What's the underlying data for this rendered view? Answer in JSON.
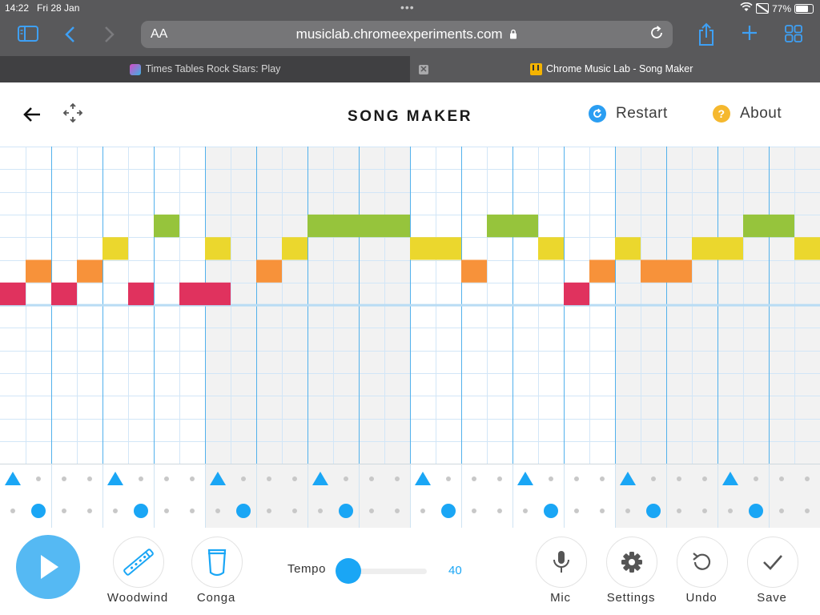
{
  "status": {
    "time": "14:22",
    "date": "Fri 28 Jan",
    "battery": "77%"
  },
  "browser": {
    "url": "musiclab.chromeexperiments.com",
    "text_size_label": "AA",
    "tabs": [
      {
        "title": "Times Tables Rock Stars: Play",
        "active": false
      },
      {
        "title": "Chrome Music Lab - Song Maker",
        "active": true
      }
    ]
  },
  "app": {
    "title": "SONG MAKER",
    "restart_label": "Restart",
    "about_label": "About",
    "about_icon_text": "?"
  },
  "melody": {
    "columns": 32,
    "rows": 14,
    "notes": [
      {
        "col": 0,
        "row": 6,
        "color": "#e0325e"
      },
      {
        "col": 1,
        "row": 5,
        "color": "#f7923a"
      },
      {
        "col": 2,
        "row": 6,
        "color": "#e0325e"
      },
      {
        "col": 3,
        "row": 5,
        "color": "#f7923a"
      },
      {
        "col": 4,
        "row": 4,
        "color": "#ebd72d"
      },
      {
        "col": 5,
        "row": 6,
        "color": "#e0325e"
      },
      {
        "col": 6,
        "row": 3,
        "color": "#96c43c"
      },
      {
        "col": 7,
        "row": 6,
        "color": "#e0325e"
      },
      {
        "col": 8,
        "row": 6,
        "color": "#e0325e"
      },
      {
        "col": 8,
        "row": 4,
        "color": "#ebd72d"
      },
      {
        "col": 10,
        "row": 5,
        "color": "#f7923a"
      },
      {
        "col": 11,
        "row": 4,
        "color": "#ebd72d"
      },
      {
        "col": 12,
        "row": 3,
        "color": "#96c43c"
      },
      {
        "col": 13,
        "row": 3,
        "color": "#96c43c"
      },
      {
        "col": 14,
        "row": 3,
        "color": "#96c43c"
      },
      {
        "col": 15,
        "row": 3,
        "color": "#96c43c"
      },
      {
        "col": 16,
        "row": 4,
        "color": "#ebd72d"
      },
      {
        "col": 17,
        "row": 4,
        "color": "#ebd72d"
      },
      {
        "col": 18,
        "row": 5,
        "color": "#f7923a"
      },
      {
        "col": 19,
        "row": 3,
        "color": "#96c43c"
      },
      {
        "col": 20,
        "row": 3,
        "color": "#96c43c"
      },
      {
        "col": 21,
        "row": 4,
        "color": "#ebd72d"
      },
      {
        "col": 22,
        "row": 6,
        "color": "#e0325e"
      },
      {
        "col": 23,
        "row": 5,
        "color": "#f7923a"
      },
      {
        "col": 24,
        "row": 4,
        "color": "#ebd72d"
      },
      {
        "col": 25,
        "row": 5,
        "color": "#f7923a"
      },
      {
        "col": 26,
        "row": 5,
        "color": "#f7923a"
      },
      {
        "col": 27,
        "row": 4,
        "color": "#ebd72d"
      },
      {
        "col": 28,
        "row": 4,
        "color": "#ebd72d"
      },
      {
        "col": 29,
        "row": 3,
        "color": "#96c43c"
      },
      {
        "col": 30,
        "row": 3,
        "color": "#96c43c"
      },
      {
        "col": 31,
        "row": 4,
        "color": "#ebd72d"
      }
    ]
  },
  "rhythm": {
    "triangle_cols": [
      0,
      4,
      8,
      12,
      16,
      20,
      24,
      28
    ],
    "circle_cols": [
      1,
      5,
      9,
      13,
      17,
      21,
      25,
      29
    ],
    "accent_color": "#1aa6f5"
  },
  "controls": {
    "instrument_label": "Woodwind",
    "percussion_label": "Conga",
    "tempo_label": "Tempo",
    "tempo_value": "40",
    "tempo_fraction": 0.1,
    "mic_label": "Mic",
    "settings_label": "Settings",
    "undo_label": "Undo",
    "save_label": "Save"
  }
}
